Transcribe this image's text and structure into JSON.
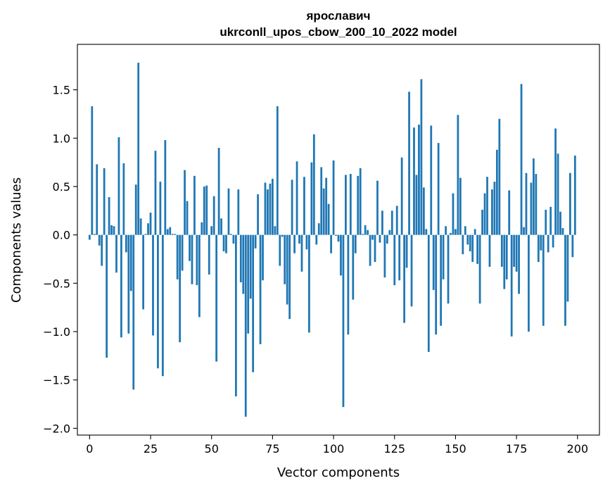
{
  "chart_data": {
    "type": "bar",
    "title": "ярославич",
    "subtitle": "ukrconll_upos_cbow_200_10_2022 model",
    "xlabel": "Vector components",
    "ylabel": "Components values",
    "xlim": [
      -5,
      209
    ],
    "ylim": [
      -2.07,
      1.97
    ],
    "xticks": [
      0,
      25,
      50,
      75,
      100,
      125,
      150,
      175,
      200
    ],
    "yticks": [
      -2.0,
      -1.5,
      -1.0,
      -0.5,
      0.0,
      0.5,
      1.0,
      1.5
    ],
    "ytick_labels": [
      "−2.0",
      "−1.5",
      "−1.0",
      "−0.5",
      "0.0",
      "0.5",
      "1.0",
      "1.5"
    ],
    "bar_color": "#1f77b4",
    "grid": false,
    "values": [
      -0.05,
      1.33,
      0.01,
      0.73,
      -0.11,
      -0.32,
      0.69,
      -1.27,
      0.39,
      0.1,
      0.09,
      -0.39,
      1.01,
      -1.06,
      0.74,
      -0.18,
      -1.02,
      -0.58,
      -1.6,
      0.52,
      1.78,
      0.17,
      -0.77,
      0.01,
      0.12,
      0.23,
      -1.04,
      0.87,
      -1.38,
      0.55,
      -1.46,
      0.98,
      0.06,
      0.08,
      0.01,
      0.01,
      -0.46,
      -1.11,
      -0.37,
      0.67,
      0.35,
      -0.27,
      -0.51,
      0.61,
      -0.52,
      -0.85,
      0.13,
      0.5,
      0.51,
      -0.41,
      0.09,
      0.4,
      -1.31,
      0.9,
      0.17,
      -0.17,
      -0.19,
      0.48,
      0.01,
      -0.09,
      -1.67,
      0.47,
      -0.49,
      -0.61,
      -1.88,
      -1.02,
      -0.66,
      -1.42,
      -0.14,
      0.42,
      -1.13,
      -0.47,
      0.54,
      0.47,
      0.53,
      0.58,
      0.09,
      1.33,
      -0.32,
      -0.02,
      -0.51,
      -0.72,
      -0.87,
      0.57,
      -0.19,
      0.76,
      -0.09,
      -0.38,
      0.6,
      -0.15,
      -1.01,
      0.75,
      1.04,
      -0.1,
      0.12,
      0.7,
      0.48,
      0.59,
      0.32,
      -0.19,
      0.77,
      -0.01,
      -0.07,
      -0.42,
      -1.78,
      0.62,
      -1.03,
      0.63,
      -0.67,
      -0.19,
      0.61,
      0.69,
      0.01,
      0.1,
      0.05,
      -0.32,
      -0.05,
      -0.28,
      0.56,
      -0.08,
      0.25,
      -0.44,
      -0.09,
      0.05,
      0.25,
      -0.52,
      0.3,
      -0.47,
      0.8,
      -0.91,
      -0.34,
      1.48,
      -0.74,
      1.11,
      0.62,
      1.14,
      1.61,
      0.49,
      0.06,
      -1.21,
      1.13,
      -0.57,
      -1.03,
      0.95,
      -0.94,
      -0.46,
      0.09,
      -0.71,
      0.02,
      0.43,
      0.06,
      1.24,
      0.59,
      -0.2,
      0.09,
      -0.1,
      -0.17,
      -0.28,
      0.06,
      -0.3,
      -0.71,
      0.26,
      0.43,
      0.6,
      -0.33,
      0.47,
      0.55,
      0.88,
      1.2,
      -0.33,
      -0.56,
      -0.46,
      0.46,
      -1.05,
      -0.33,
      -0.38,
      -0.61,
      1.56,
      0.08,
      0.64,
      -1.0,
      0.54,
      0.79,
      0.63,
      -0.28,
      -0.16,
      -0.94,
      0.26,
      -0.18,
      0.29,
      -0.13,
      1.1,
      0.84,
      0.24,
      0.07,
      -0.94,
      -0.69,
      0.64,
      -0.23,
      0.82
    ]
  }
}
